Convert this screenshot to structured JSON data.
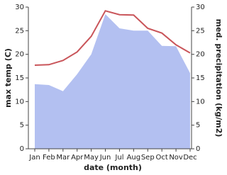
{
  "chart_data": {
    "type": "line-area",
    "categories": [
      "Jan",
      "Feb",
      "Mar",
      "Apr",
      "May",
      "Jun",
      "Jul",
      "Aug",
      "Sep",
      "Oct",
      "Nov",
      "Dec"
    ],
    "x_label": "date (month)",
    "y_label": "max temp (C)",
    "y2_label": "med. precipitation (kg/m2)",
    "series": [
      {
        "name": "med. precipitation",
        "type": "area",
        "axis": "y2",
        "color": "#b3c0f1",
        "values": [
          13.7,
          13.5,
          12.2,
          15.8,
          20.0,
          28.5,
          25.5,
          25.0,
          25.0,
          21.8,
          21.7,
          16.0
        ]
      },
      {
        "name": "max temp",
        "type": "line",
        "color": "#c9555a",
        "values": [
          17.7,
          17.8,
          18.7,
          20.5,
          23.8,
          29.2,
          28.4,
          28.3,
          25.5,
          24.5,
          22.0,
          20.3
        ]
      }
    ],
    "ylim": [
      0,
      30
    ],
    "yticks": [
      0,
      5,
      10,
      15,
      20,
      25,
      30
    ],
    "y2lim": [
      0,
      30
    ],
    "y2ticks": [
      0,
      5,
      10,
      15,
      20,
      25,
      30
    ]
  }
}
